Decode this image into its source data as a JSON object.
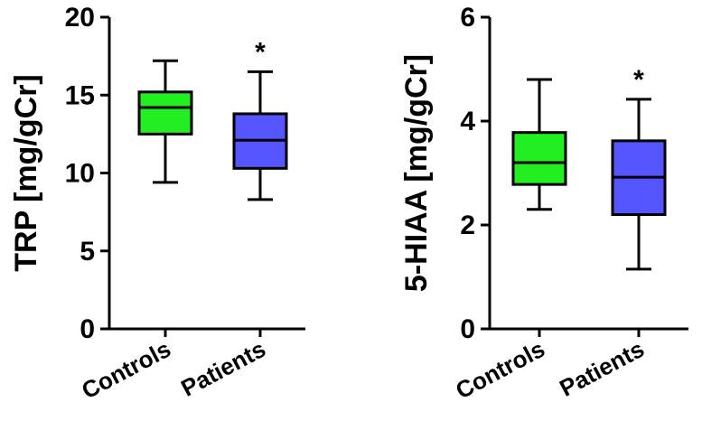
{
  "chart_data": [
    {
      "type": "box",
      "ylabel": "TRP [mg/gCr]",
      "ylim": [
        0,
        20
      ],
      "yticks": [
        "0",
        "5",
        "10",
        "15",
        "20"
      ],
      "grid": false,
      "categories": [
        "Controls",
        "Patients"
      ],
      "colors": [
        "#22EE22",
        "#5555FF"
      ],
      "boxes": [
        {
          "name": "Controls",
          "min": 9.4,
          "q1": 12.5,
          "median": 14.2,
          "q3": 15.2,
          "max": 17.2,
          "annotation": ""
        },
        {
          "name": "Patients",
          "min": 8.3,
          "q1": 10.3,
          "median": 12.1,
          "q3": 13.8,
          "max": 16.5,
          "annotation": "*"
        }
      ]
    },
    {
      "type": "box",
      "ylabel": "5-HIAA [mg/gCr]",
      "ylim": [
        0,
        6
      ],
      "yticks": [
        "0",
        "2",
        "4",
        "6"
      ],
      "grid": false,
      "categories": [
        "Controls",
        "Patients"
      ],
      "colors": [
        "#22EE22",
        "#5555FF"
      ],
      "boxes": [
        {
          "name": "Controls",
          "min": 2.3,
          "q1": 2.78,
          "median": 3.2,
          "q3": 3.78,
          "max": 4.8,
          "annotation": ""
        },
        {
          "name": "Patients",
          "min": 1.15,
          "q1": 2.2,
          "median": 2.92,
          "q3": 3.62,
          "max": 4.42,
          "annotation": "*"
        }
      ]
    }
  ]
}
